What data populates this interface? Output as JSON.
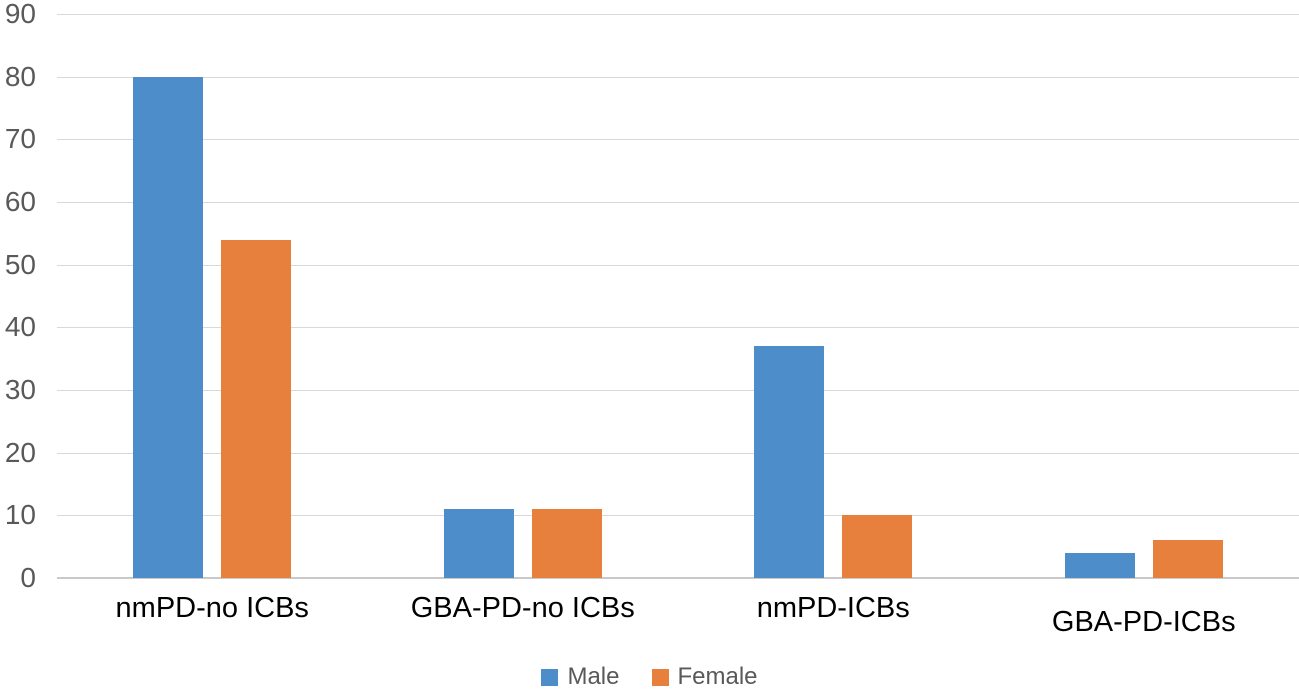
{
  "chart_data": {
    "type": "bar",
    "title": "",
    "categories": [
      "nmPD-no ICBs",
      "GBA-PD-no ICBs",
      "nmPD-ICBs",
      "GBA-PD-ICBs"
    ],
    "series": [
      {
        "name": "Male",
        "color": "#4D8DC9",
        "values": [
          80,
          11,
          37,
          4
        ]
      },
      {
        "name": "Female",
        "color": "#E8803D",
        "values": [
          54,
          11,
          10,
          6
        ]
      }
    ],
    "y_axis": {
      "min": 0,
      "max": 90,
      "step": 10,
      "ticks": [
        "90",
        "80",
        "70",
        "60",
        "50",
        "40",
        "30",
        "20",
        "10",
        "0"
      ]
    },
    "grid": true,
    "legend_position": "bottom"
  },
  "colors": {
    "background": "#FFFFFF",
    "gridline": "#D9D9D9",
    "baseline": "#C9C9C9",
    "tick_text": "#595959",
    "category_text": "#000000",
    "legend_text": "#595959"
  }
}
